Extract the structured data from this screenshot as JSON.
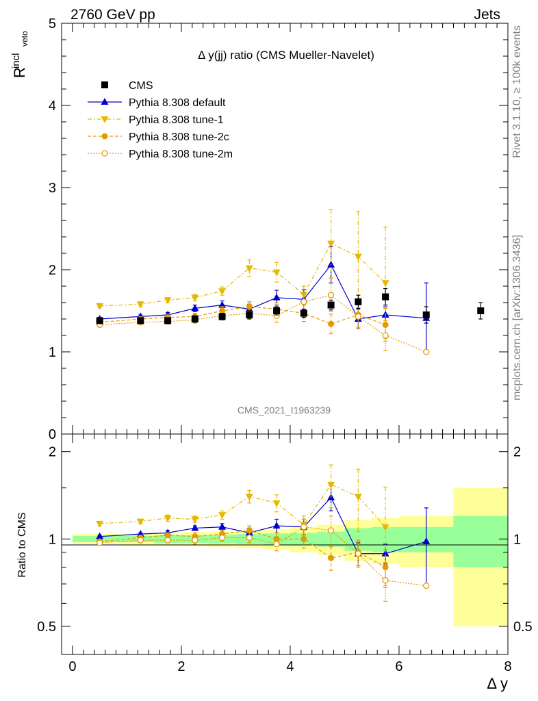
{
  "header": {
    "left": "2760 GeV pp",
    "right": "Jets"
  },
  "side_text": {
    "rivet": "Rivet 3.1.10, ≥ 100k events",
    "mcplots": "mcplots.cern.ch [arXiv:1306.3436]"
  },
  "watermark": "CMS_2021_I1963239",
  "colors": {
    "cms": "#000000",
    "default": "#0000cc",
    "tune1": "#e6b800",
    "tune2c": "#e69900",
    "tune2m": "#e69900",
    "band_inner": "#99ff99",
    "band_outer": "#ffff99"
  },
  "chart_data": [
    {
      "type": "scatter",
      "title": "Δ y(jj) ratio (CMS Mueller-Navelet)",
      "ylabel": "R^incl_veto",
      "ylabel_main": "R",
      "ylabel_sup": "incl",
      "ylabel_sub": "veto",
      "xlabel": "Δ y",
      "xlim": [
        -0.2,
        8.0
      ],
      "ylim": [
        0,
        5
      ],
      "yticks": [
        0,
        1,
        2,
        3,
        4,
        5
      ],
      "xticks": [
        0,
        2,
        4,
        6,
        8
      ],
      "legend_position": "top-left",
      "x": [
        0.5,
        1.25,
        1.75,
        2.25,
        2.75,
        3.25,
        3.75,
        4.25,
        4.75,
        5.25,
        5.75,
        6.5,
        7.5
      ],
      "series": [
        {
          "name": "CMS",
          "key": "cms",
          "marker": "square",
          "x": [
            0.5,
            1.25,
            1.75,
            2.25,
            2.75,
            3.25,
            3.75,
            4.25,
            4.75,
            5.25,
            5.75,
            6.5,
            7.5
          ],
          "values": [
            1.38,
            1.38,
            1.38,
            1.4,
            1.43,
            1.45,
            1.5,
            1.47,
            1.57,
            1.61,
            1.67,
            1.45,
            1.5
          ],
          "errors": [
            0.03,
            0.03,
            0.03,
            0.04,
            0.04,
            0.05,
            0.05,
            0.05,
            0.06,
            0.08,
            0.1,
            0.1,
            0.1
          ]
        },
        {
          "name": "Pythia 8.308 default",
          "key": "default",
          "marker": "triangle-up",
          "line": "solid",
          "x": [
            0.5,
            1.25,
            1.75,
            2.25,
            2.75,
            3.25,
            3.75,
            4.25,
            4.75,
            5.25,
            5.75,
            6.5
          ],
          "values": [
            1.4,
            1.43,
            1.45,
            1.53,
            1.57,
            1.52,
            1.66,
            1.64,
            2.06,
            1.4,
            1.45,
            1.41
          ],
          "errors": [
            0.02,
            0.02,
            0.03,
            0.04,
            0.05,
            0.06,
            0.09,
            0.12,
            0.22,
            0.12,
            0.1,
            0.43
          ]
        },
        {
          "name": "Pythia 8.308 tune-1",
          "key": "tune1",
          "marker": "triangle-down",
          "line": "dashdot",
          "x": [
            0.5,
            1.25,
            1.75,
            2.25,
            2.75,
            3.25,
            3.75,
            4.25,
            4.75,
            5.25,
            5.75
          ],
          "values": [
            1.56,
            1.58,
            1.63,
            1.66,
            1.74,
            2.02,
            1.97,
            1.7,
            2.32,
            2.16,
            1.84
          ],
          "errors": [
            0.02,
            0.03,
            0.03,
            0.04,
            0.05,
            0.1,
            0.12,
            0.1,
            0.41,
            0.55,
            0.68
          ]
        },
        {
          "name": "Pythia 8.308 tune-2c",
          "key": "tune2c",
          "marker": "circle",
          "line": "dashed",
          "x": [
            0.5,
            1.25,
            1.75,
            2.25,
            2.75,
            3.25,
            3.75,
            4.25,
            4.75,
            5.25,
            5.75
          ],
          "values": [
            1.36,
            1.4,
            1.42,
            1.43,
            1.5,
            1.55,
            1.52,
            1.47,
            1.34,
            1.45,
            1.33
          ],
          "errors": [
            0.02,
            0.02,
            0.03,
            0.04,
            0.05,
            0.06,
            0.08,
            0.1,
            0.12,
            0.15,
            0.2
          ]
        },
        {
          "name": "Pythia 8.308 tune-2m",
          "key": "tune2m",
          "marker": "circle-open",
          "line": "dotted",
          "x": [
            0.5,
            1.25,
            1.75,
            2.25,
            2.75,
            3.25,
            3.75,
            4.25,
            4.75,
            5.25,
            5.75,
            6.5
          ],
          "values": [
            1.33,
            1.36,
            1.37,
            1.39,
            1.44,
            1.47,
            1.44,
            1.61,
            1.69,
            1.43,
            1.2,
            1.0
          ],
          "errors": [
            0.02,
            0.02,
            0.03,
            0.04,
            0.05,
            0.06,
            0.08,
            0.1,
            0.2,
            0.15,
            0.18,
            0
          ]
        }
      ]
    },
    {
      "type": "scatter",
      "title": "",
      "ylabel": "Ratio to CMS",
      "xlabel": "Δ y",
      "xlim": [
        -0.2,
        8.0
      ],
      "ylim": [
        0.4,
        2.3
      ],
      "yticks": [
        0.5,
        1,
        2
      ],
      "reference_line": 1,
      "bands": {
        "bins": [
          [
            0,
            0.9
          ],
          [
            0.9,
            1.5
          ],
          [
            1.5,
            2.0
          ],
          [
            2.0,
            2.5
          ],
          [
            2.5,
            3.0
          ],
          [
            3.0,
            3.5
          ],
          [
            3.5,
            4.0
          ],
          [
            4.0,
            4.5
          ],
          [
            4.5,
            5.0
          ],
          [
            5.0,
            5.5
          ],
          [
            5.5,
            6.0
          ],
          [
            6.0,
            7.0
          ],
          [
            7.0,
            8.0
          ]
        ],
        "inner": [
          0.025,
          0.025,
          0.03,
          0.03,
          0.035,
          0.04,
          0.045,
          0.05,
          0.06,
          0.09,
          0.1,
          0.1,
          0.2
        ],
        "outer": [
          0.04,
          0.045,
          0.05,
          0.055,
          0.06,
          0.07,
          0.08,
          0.1,
          0.12,
          0.16,
          0.18,
          0.2,
          0.5
        ]
      },
      "series": [
        {
          "name": "Pythia 8.308 default",
          "key": "default",
          "marker": "triangle-up",
          "line": "solid",
          "x": [
            0.5,
            1.25,
            1.75,
            2.25,
            2.75,
            3.25,
            3.75,
            4.25,
            4.75,
            5.25,
            5.75,
            6.5
          ],
          "values": [
            1.02,
            1.04,
            1.05,
            1.09,
            1.1,
            1.05,
            1.11,
            1.1,
            1.39,
            0.89,
            0.89,
            0.98
          ],
          "errors": [
            0.01,
            0.01,
            0.02,
            0.02,
            0.03,
            0.04,
            0.06,
            0.07,
            0.14,
            0.08,
            0.07,
            0.3
          ]
        },
        {
          "name": "Pythia 8.308 tune-1",
          "key": "tune1",
          "marker": "triangle-down",
          "line": "dashdot",
          "x": [
            0.5,
            1.25,
            1.75,
            2.25,
            2.75,
            3.25,
            3.75,
            4.25,
            4.75,
            5.25,
            5.75
          ],
          "values": [
            1.13,
            1.15,
            1.18,
            1.17,
            1.21,
            1.4,
            1.33,
            1.12,
            1.54,
            1.4,
            1.1
          ],
          "errors": [
            0.02,
            0.02,
            0.03,
            0.03,
            0.04,
            0.07,
            0.09,
            0.08,
            0.26,
            0.34,
            0.41
          ]
        },
        {
          "name": "Pythia 8.308 tune-2c",
          "key": "tune2c",
          "marker": "circle",
          "line": "dashed",
          "x": [
            0.5,
            1.25,
            1.75,
            2.25,
            2.75,
            3.25,
            3.75,
            4.25,
            4.75,
            5.25,
            5.75
          ],
          "values": [
            0.98,
            1.01,
            1.03,
            1.02,
            1.04,
            1.07,
            1.0,
            1.0,
            0.86,
            0.9,
            0.8
          ],
          "errors": [
            0.01,
            0.02,
            0.02,
            0.03,
            0.03,
            0.04,
            0.05,
            0.07,
            0.08,
            0.09,
            0.12
          ]
        },
        {
          "name": "Pythia 8.308 tune-2m",
          "key": "tune2m",
          "marker": "circle-open",
          "line": "dotted",
          "x": [
            0.5,
            1.25,
            1.75,
            2.25,
            2.75,
            3.25,
            3.75,
            4.25,
            4.75,
            5.25,
            5.75,
            6.5
          ],
          "values": [
            0.97,
            0.99,
            0.99,
            0.99,
            1.01,
            1.01,
            0.96,
            1.1,
            1.07,
            0.89,
            0.72,
            0.69
          ],
          "errors": [
            0.01,
            0.02,
            0.02,
            0.03,
            0.03,
            0.04,
            0.05,
            0.07,
            0.13,
            0.09,
            0.11,
            0
          ]
        }
      ]
    }
  ]
}
